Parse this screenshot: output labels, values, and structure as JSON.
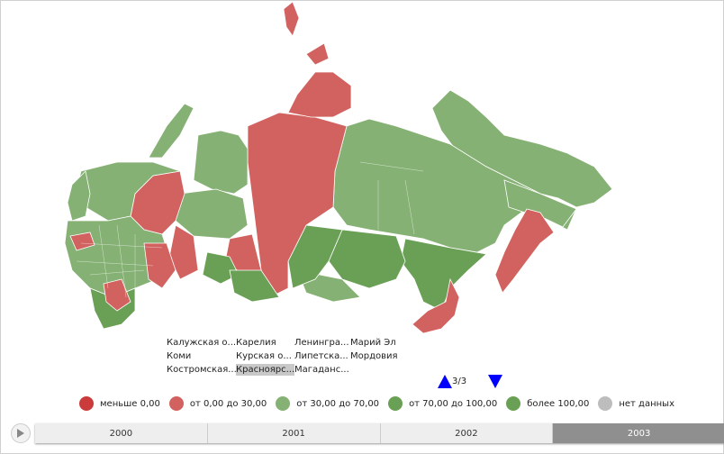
{
  "colors": {
    "below_zero": "#cc3b3b",
    "range_0_30": "#d1625f",
    "range_30_70": "#86b174",
    "range_70_100": "#6aa056",
    "above_100": "#6aa056",
    "no_data": "#bdbdbd"
  },
  "region_list": {
    "items": [
      "Калужская о...",
      "Карелия",
      "Ленингра...",
      "Марий Эл",
      "Коми",
      "Курская о...",
      "Липетска...",
      "Мордовия",
      "Костромская...",
      "Красноярс...",
      "Магаданс..."
    ],
    "selected": "Красноярс...",
    "page": "3/3"
  },
  "legend": [
    {
      "label": "меньше 0,00",
      "color": "#cc3b3b"
    },
    {
      "label": "от 0,00 до 30,00",
      "color": "#d1625f"
    },
    {
      "label": "от 30,00 до 70,00",
      "color": "#86b174"
    },
    {
      "label": "от 70,00 до 100,00",
      "color": "#6aa056"
    },
    {
      "label": "более 100,00",
      "color": "#6aa056"
    },
    {
      "label": "нет данных",
      "color": "#bdbdbd"
    }
  ],
  "timeline": {
    "years": [
      "2000",
      "2001",
      "2002",
      "2003"
    ],
    "active": "2003",
    "play_icon": "play-icon"
  }
}
